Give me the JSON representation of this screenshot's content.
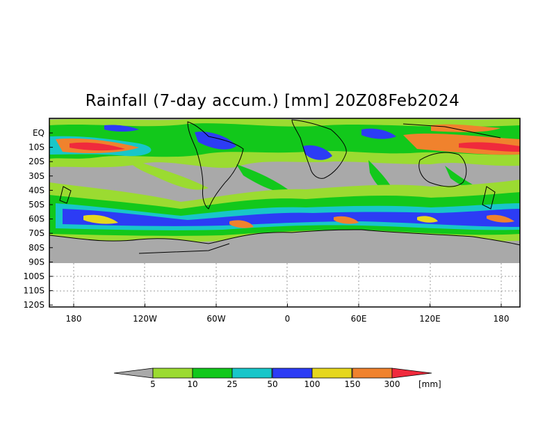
{
  "title": "Rainfall (7-day accum.) [mm] 20Z08Feb2024",
  "map": {
    "lat_labels": [
      "EQ",
      "10S",
      "20S",
      "30S",
      "40S",
      "50S",
      "60S",
      "70S",
      "80S",
      "90S",
      "100S",
      "110S",
      "120S"
    ],
    "lon_labels": [
      "180",
      "120W",
      "60W",
      "0",
      "60E",
      "120E",
      "180"
    ],
    "land_mask_color": "#a9a9a9",
    "grid": "dotted"
  },
  "colorbar": {
    "thresholds": [
      "5",
      "10",
      "25",
      "50",
      "100",
      "150",
      "300"
    ],
    "unit": "[mm]",
    "colors": [
      "#a9a9a9",
      "#9bdb31",
      "#12c81b",
      "#18c6c9",
      "#2c3cf5",
      "#e6d71e",
      "#f0822d",
      "#f02a3c"
    ]
  }
}
